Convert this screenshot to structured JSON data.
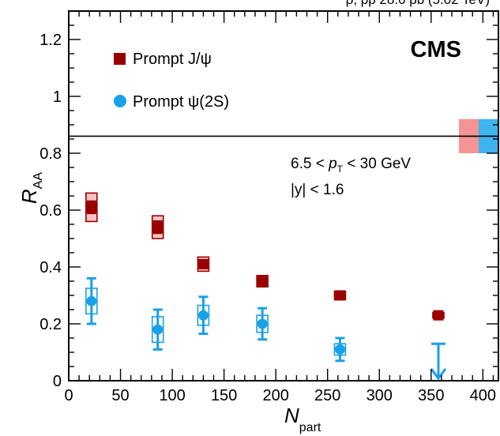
{
  "header_partial_text": "ρ, pp 28.0 pb   (5.02 TeV)",
  "chart_data": {
    "type": "scatter",
    "title": "",
    "xlabel_main": "N",
    "xlabel_sub": "part",
    "ylabel_main": "R",
    "ylabel_sub": "AA",
    "xlim": [
      0,
      415
    ],
    "ylim": [
      0,
      1.3
    ],
    "x_ticks": [
      0,
      50,
      100,
      150,
      200,
      250,
      300,
      350,
      400
    ],
    "y_ticks": [
      0,
      0.2,
      0.4,
      0.6,
      0.8,
      1,
      1.2
    ],
    "x_tick_labels": [
      "0",
      "50",
      "100",
      "150",
      "200",
      "250",
      "300",
      "350",
      "400"
    ],
    "y_tick_labels": [
      "0",
      "0.2",
      "0.4",
      "0.6",
      "0.8",
      "1",
      "1.2"
    ],
    "reference_line": 0.86,
    "logo": "CMS",
    "annotation_line1_pre": "6.5 < ",
    "annotation_line1_var": "p",
    "annotation_line1_sub": "T",
    "annotation_line1_post": " < 30 GeV",
    "annotation_line2": "|y| < 1.6",
    "legend_placement": "top-left",
    "series": [
      {
        "name": "Prompt J/ψ",
        "marker": "square",
        "color": "#990000",
        "box_fill": "#f4c4c4",
        "x": [
          22,
          86,
          130,
          187,
          262,
          357
        ],
        "y": [
          0.61,
          0.54,
          0.41,
          0.35,
          0.3,
          0.23
        ],
        "syst": [
          0.05,
          0.04,
          0.025,
          0.02,
          0.015,
          0.01
        ],
        "stat": [
          0.02,
          0.02,
          0.01,
          0.01,
          0.01,
          0.01
        ]
      },
      {
        "name": "Prompt ψ(2S)",
        "marker": "circle",
        "color": "#1aa0e6",
        "box_fill": "none",
        "x": [
          22,
          86,
          130,
          187,
          262
        ],
        "y": [
          0.28,
          0.18,
          0.23,
          0.2,
          0.11
        ],
        "syst": [
          0.045,
          0.045,
          0.035,
          0.03,
          0.02
        ],
        "stat": [
          0.08,
          0.07,
          0.065,
          0.055,
          0.04
        ]
      }
    ],
    "upper_limit": {
      "series": "Prompt ψ(2S)",
      "x": 357,
      "y": 0.13
    },
    "global_uncertainty": [
      {
        "series": "Prompt J/ψ",
        "color": "#f49494",
        "low": 0.8,
        "high": 0.92
      },
      {
        "series": "Prompt ψ(2S)",
        "color": "#3fb3ee",
        "low": 0.8,
        "high": 0.92
      }
    ]
  }
}
